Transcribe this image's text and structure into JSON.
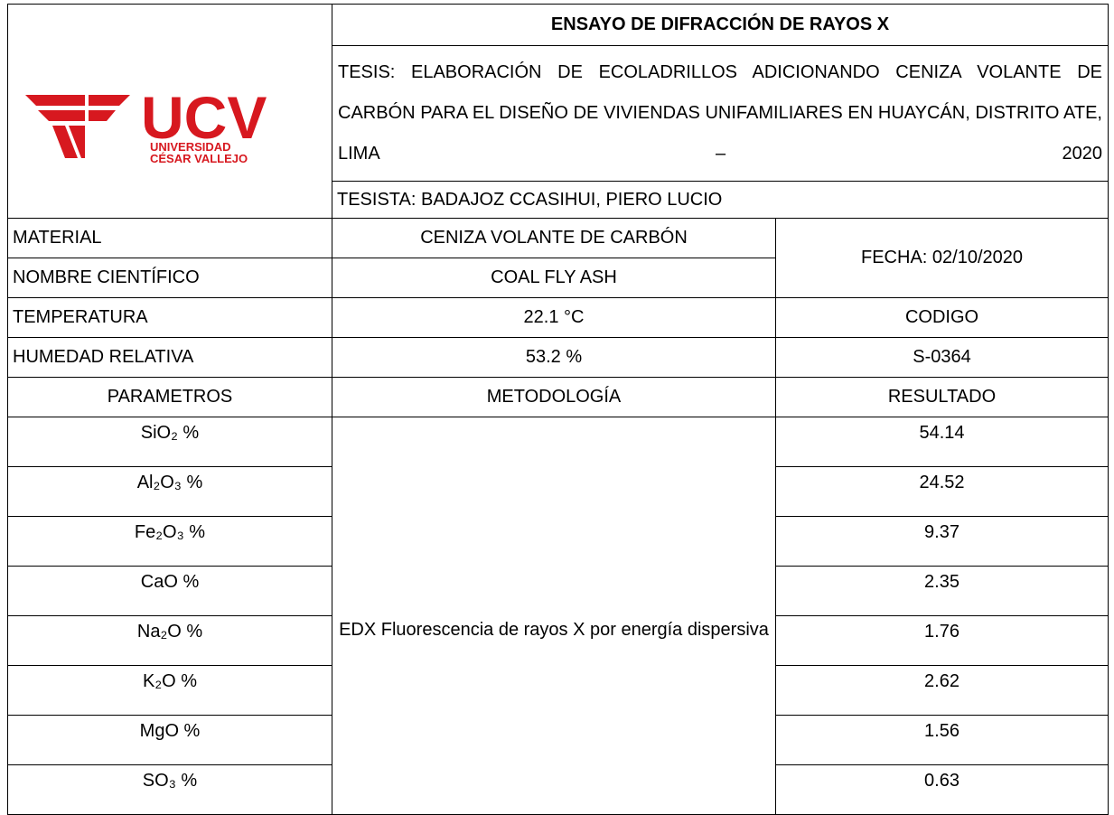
{
  "header": {
    "title": "ENSAYO DE DIFRACCIÓN DE RAYOS X",
    "thesis": "TESIS: ELABORACIÓN DE ECOLADRILLOS ADICIONANDO CENIZA VOLANTE DE CARBÓN PARA EL DISEÑO DE VIVIENDAS UNIFAMILIARES EN HUAYCÁN, DISTRITO ATE, LIMA – 2020",
    "author": "TESISTA: BADAJOZ CCASIHUI, PIERO LUCIO"
  },
  "logo": {
    "acronym": "UCV",
    "line1": "UNIVERSIDAD",
    "line2": "CÉSAR VALLEJO"
  },
  "info": {
    "rows": [
      [
        "MATERIAL",
        "CENIZA VOLANTE DE CARBÓN"
      ],
      [
        "NOMBRE CIENTÍFICO",
        "COAL FLY ASH"
      ],
      [
        "TEMPERATURA",
        "22.1 °C"
      ],
      [
        "HUMEDAD RELATIVA",
        "53.2 %"
      ]
    ],
    "date": "FECHA: 02/10/2020",
    "code_label": "CODIGO",
    "code": "S-0364"
  },
  "results": {
    "columns": [
      "PARAMETROS",
      "METODOLOGÍA",
      "RESULTADO"
    ],
    "method": "EDX Fluorescencia de rayos X por energía dispersiva",
    "rows": [
      [
        "SiO₂ %",
        "54.14"
      ],
      [
        "Al₂O₃ %",
        "24.52"
      ],
      [
        "Fe₂O₃ %",
        "9.37"
      ],
      [
        "CaO %",
        "2.35"
      ],
      [
        "Na₂O %",
        "1.76"
      ],
      [
        "K₂O %",
        "2.62"
      ],
      [
        "MgO %",
        "1.56"
      ],
      [
        "SO₃ %",
        "0.63"
      ]
    ]
  }
}
